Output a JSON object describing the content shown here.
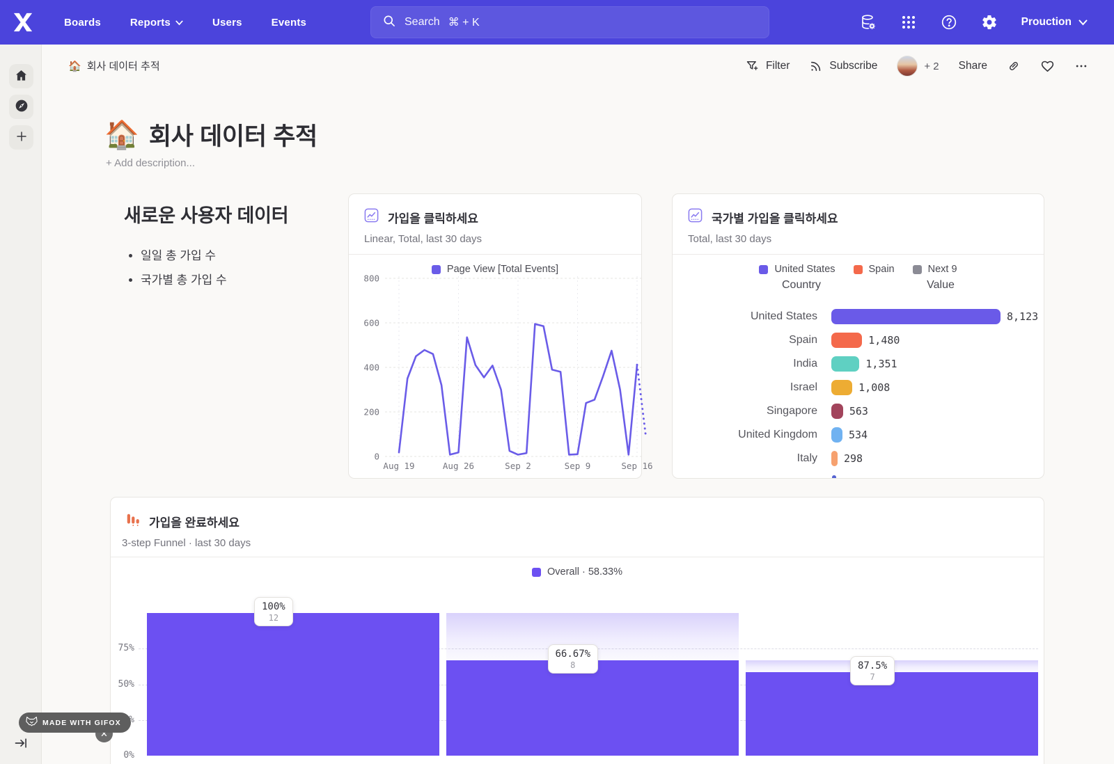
{
  "navbar": {
    "items": [
      {
        "label": "Boards",
        "chevron": false
      },
      {
        "label": "Reports",
        "chevron": true
      },
      {
        "label": "Users",
        "chevron": false
      },
      {
        "label": "Events",
        "chevron": false
      }
    ],
    "search": {
      "placeholder": "Search",
      "shortcut": "⌘ + K"
    },
    "right_icons": [
      "data-settings",
      "apps-grid",
      "help",
      "settings"
    ],
    "project": "Prouction",
    "accent_color": "#4B44DC"
  },
  "sidebar": {
    "buttons": [
      "home",
      "explore",
      "add"
    ],
    "collapse": "expand-sidebar"
  },
  "board_header": {
    "breadcrumb": {
      "emoji": "🏠",
      "label": "회사 데이터 추적"
    },
    "actions": {
      "filter": "Filter",
      "subscribe": "Subscribe",
      "extra_collaborators": "+ 2",
      "share": "Share"
    }
  },
  "page": {
    "title_emoji": "🏠",
    "title": "회사 데이터 추적",
    "add_description": "+ Add description..."
  },
  "text_card": {
    "heading": "새로운 사용자 데이터",
    "bullets": [
      "일일 총 가입 수",
      "국가별 총 가입 수"
    ]
  },
  "line_card": {
    "title": "가입을 클릭하세요",
    "subtitle": "Linear, Total, last 30 days",
    "legend": "Page View [Total Events]",
    "line_color": "#6A5CE8"
  },
  "bar_card": {
    "title": "국가별 가입을 클릭하세요",
    "subtitle": "Total, last 30 days",
    "legend": [
      {
        "label": "United States",
        "color": "#6A5AE8"
      },
      {
        "label": "Spain",
        "color": "#F4694B"
      },
      {
        "label": "Next 9",
        "color": "#8B8B95"
      }
    ],
    "columns": [
      "Country",
      "Value"
    ]
  },
  "funnel_card": {
    "title": "가입을 완료하세요",
    "subtitle": "3-step Funnel · last 30 days",
    "legend": "Overall · 58.33%",
    "bar_color": "#6C50F2"
  },
  "watermark": {
    "label": "MADE WITH GIFOX"
  },
  "chart_data": [
    {
      "type": "line",
      "title": "가입을 클릭하세요",
      "series": [
        {
          "name": "Page View [Total Events]",
          "color": "#6A5CE8",
          "x": [
            "Aug 19",
            "Aug 20",
            "Aug 21",
            "Aug 22",
            "Aug 23",
            "Aug 24",
            "Aug 25",
            "Aug 26",
            "Aug 27",
            "Aug 28",
            "Aug 29",
            "Aug 30",
            "Aug 31",
            "Sep 1",
            "Sep 2",
            "Sep 3",
            "Sep 4",
            "Sep 5",
            "Sep 6",
            "Sep 7",
            "Sep 8",
            "Sep 9",
            "Sep 10",
            "Sep 11",
            "Sep 12",
            "Sep 13",
            "Sep 14",
            "Sep 15",
            "Sep 16",
            "Sep 17"
          ],
          "values": [
            18,
            350,
            450,
            478,
            460,
            320,
            8,
            18,
            535,
            410,
            355,
            408,
            300,
            25,
            8,
            15,
            595,
            585,
            390,
            380,
            8,
            10,
            240,
            255,
            360,
            475,
            300,
            8,
            412,
            100
          ],
          "last_solid_index": 28,
          "incomplete_tail_dashed": true
        }
      ],
      "ylim": [
        0,
        800
      ],
      "yticks": [
        0,
        200,
        400,
        600,
        800
      ],
      "xtick_labels": [
        "Aug 19",
        "Aug 26",
        "Sep 2",
        "Sep 9",
        "Sep 16"
      ],
      "xtick_indices": [
        0,
        7,
        14,
        21,
        28
      ],
      "grid": true,
      "legend_position": "top-center"
    },
    {
      "type": "bar",
      "orientation": "horizontal",
      "title": "국가별 가입을 클릭하세요",
      "categories": [
        "United States",
        "Spain",
        "India",
        "Israel",
        "Singapore",
        "United Kingdom",
        "Italy"
      ],
      "values": [
        8123,
        1480,
        1351,
        1008,
        563,
        534,
        298
      ],
      "value_labels": [
        "8,123",
        "1,480",
        "1,351",
        "1,008",
        "563",
        "534",
        "298"
      ],
      "colors": [
        "#6A5AE8",
        "#F4694B",
        "#5FD0C2",
        "#EDAC33",
        "#A2445C",
        "#70B2F1",
        "#F6A16F"
      ],
      "clipped_extra_row": true,
      "clipped_row_color": "#5563D1"
    },
    {
      "type": "funnel",
      "title": "가입을 완료하세요",
      "overall_conversion": "58.33%",
      "steps": [
        {
          "conversion_label": "100%",
          "count": "12",
          "height_pct": 100,
          "prev_pct": 100
        },
        {
          "conversion_label": "66.67%",
          "count": "8",
          "height_pct": 66.67,
          "prev_pct": 100
        },
        {
          "conversion_label": "87.5%",
          "count": "7",
          "height_pct": 58.33,
          "prev_pct": 66.67
        }
      ],
      "ytick_labels": [
        "75%",
        "50%",
        "25%",
        "0%"
      ],
      "ytick_pcts": [
        75,
        50,
        25,
        0
      ],
      "grid": "dashed"
    }
  ]
}
